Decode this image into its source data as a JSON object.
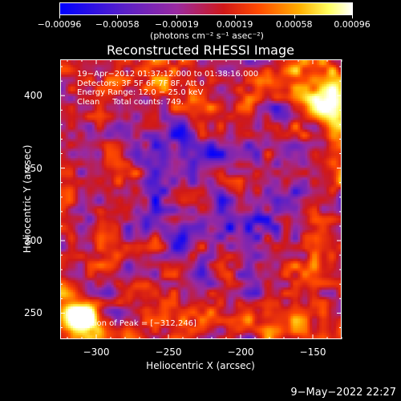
{
  "chart_data": {
    "type": "heatmap",
    "title": "Reconstructed RHESSI Image",
    "xlabel": "Heliocentric X (arcsec)",
    "ylabel": "Heliocentric Y (arcsec)",
    "xlim": [
      -325,
      -130
    ],
    "ylim": [
      232,
      425
    ],
    "x_ticks": [
      -300,
      -250,
      -200,
      -150
    ],
    "x_tick_labels": [
      "−300",
      "−250",
      "−200",
      "−150"
    ],
    "y_ticks": [
      250,
      300,
      350,
      400
    ],
    "y_tick_labels": [
      "250",
      "300",
      "350",
      "400"
    ],
    "colorbar": {
      "range": [
        -0.00096,
        0.00096
      ],
      "tick_values": [
        -0.00096,
        -0.00058,
        -0.00019,
        0.00019,
        0.00058,
        0.00096
      ],
      "tick_labels": [
        "−0.00096",
        "−0.00058",
        "−0.00019",
        "0.00019",
        "0.00058",
        "0.00096"
      ],
      "units_label": "(photons cm⁻² s⁻¹ asec⁻²)"
    },
    "annotations": {
      "line1": "19−Apr−2012 01:37:12.000 to 01:38:16.000",
      "line2": "Detectors: 3F 5F 6F 7F 8F, Att 0",
      "line3": "Energy Range: 12.0 − 25.0 keV",
      "line4": "Clean     Total counts: 749.",
      "peak": "Position of Peak = [−312,246]"
    },
    "peak_position": [
      -312,
      246
    ],
    "grid": false,
    "colormap": [
      "#0000ff",
      "#5a20c8",
      "#9a2aa0",
      "#d01818",
      "#ff4a00",
      "#ffb000",
      "#ffff60",
      "#ffffff"
    ]
  },
  "footer": {
    "timestamp": "9−May−2022 22:27"
  }
}
